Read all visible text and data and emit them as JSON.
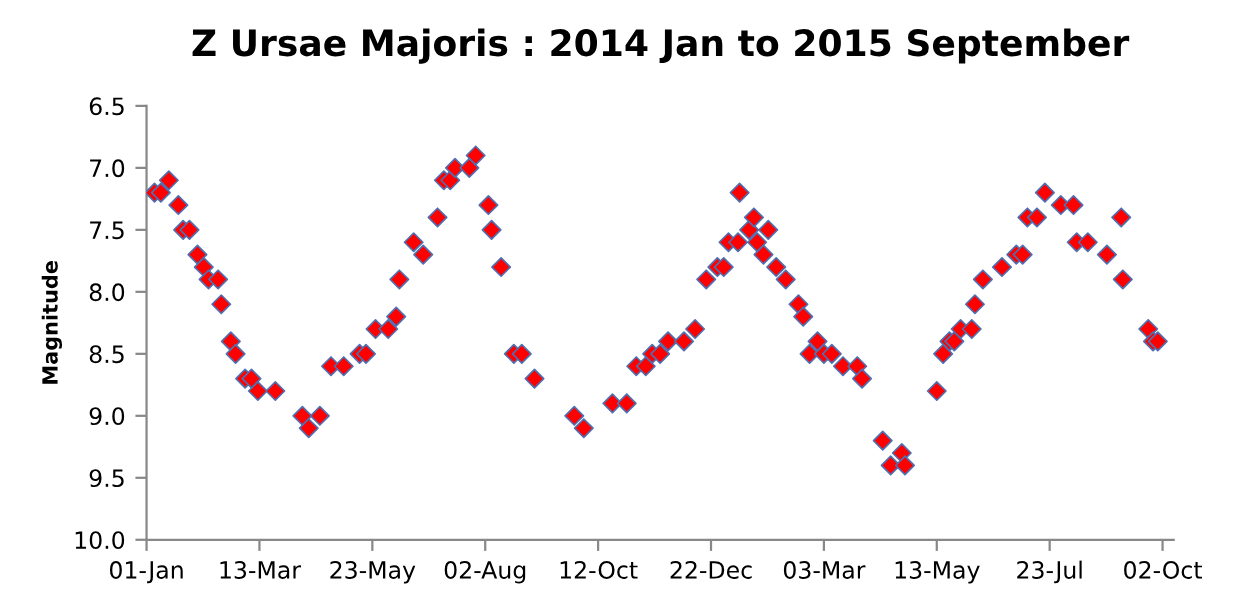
{
  "chart_data": {
    "type": "scatter",
    "title": "Z Ursae Majoris : 2014 Jan to 2015 September",
    "ylabel": "Magnitude",
    "x": [
      "2014-01-06",
      "2014-01-10",
      "2014-01-15",
      "2014-01-21",
      "2014-01-24",
      "2014-01-28",
      "2014-02-02",
      "2014-02-06",
      "2014-02-09",
      "2014-02-15",
      "2014-02-17",
      "2014-02-23",
      "2014-02-26",
      "2014-03-04",
      "2014-03-08",
      "2014-03-12",
      "2014-03-23",
      "2014-04-09",
      "2014-04-13",
      "2014-04-20",
      "2014-04-27",
      "2014-05-05",
      "2014-05-15",
      "2014-05-19",
      "2014-05-25",
      "2014-06-02",
      "2014-06-07",
      "2014-06-09",
      "2014-06-18",
      "2014-06-24",
      "2014-07-03",
      "2014-07-07",
      "2014-07-11",
      "2014-07-14",
      "2014-07-23",
      "2014-07-27",
      "2014-08-04",
      "2014-08-06",
      "2014-08-12",
      "2014-08-20",
      "2014-08-25",
      "2014-09-02",
      "2014-09-27",
      "2014-10-03",
      "2014-10-21",
      "2014-10-30",
      "2014-11-05",
      "2014-11-11",
      "2014-11-15",
      "2014-11-20",
      "2014-11-25",
      "2014-12-05",
      "2014-12-12",
      "2014-12-19",
      "2014-12-26",
      "2014-12-30",
      "2015-01-02",
      "2015-01-08",
      "2015-01-09",
      "2015-01-15",
      "2015-01-18",
      "2015-01-20",
      "2015-01-24",
      "2015-01-27",
      "2015-02-01",
      "2015-02-07",
      "2015-02-15",
      "2015-02-18",
      "2015-02-22",
      "2015-02-27",
      "2015-03-03",
      "2015-03-08",
      "2015-03-15",
      "2015-03-24",
      "2015-03-27",
      "2015-04-09",
      "2015-04-14",
      "2015-04-21",
      "2015-04-23",
      "2015-05-13",
      "2015-05-17",
      "2015-05-21",
      "2015-05-24",
      "2015-05-28",
      "2015-06-04",
      "2015-06-06",
      "2015-06-11",
      "2015-06-23",
      "2015-07-02",
      "2015-07-06",
      "2015-07-09",
      "2015-07-15",
      "2015-07-20",
      "2015-07-30",
      "2015-08-07",
      "2015-08-09",
      "2015-08-16",
      "2015-08-28",
      "2015-09-06",
      "2015-09-07",
      "2015-09-23",
      "2015-09-26",
      "2015-09-29"
    ],
    "series": [
      {
        "color": "#ff0000",
        "values": [
          7.2,
          7.2,
          7.1,
          7.3,
          7.5,
          7.5,
          7.7,
          7.8,
          7.9,
          7.9,
          8.1,
          8.4,
          8.5,
          8.7,
          8.7,
          8.8,
          8.8,
          9.0,
          9.1,
          9.0,
          8.6,
          8.6,
          8.5,
          8.5,
          8.3,
          8.3,
          8.2,
          7.9,
          7.6,
          7.7,
          7.4,
          7.1,
          7.1,
          7.0,
          7.0,
          6.9,
          7.3,
          7.5,
          7.8,
          8.5,
          8.5,
          8.7,
          9.0,
          9.1,
          8.9,
          8.9,
          8.6,
          8.6,
          8.5,
          8.5,
          8.4,
          8.4,
          8.3,
          7.9,
          7.8,
          7.8,
          7.6,
          7.6,
          7.2,
          7.5,
          7.4,
          7.6,
          7.7,
          7.5,
          7.8,
          7.9,
          8.1,
          8.2,
          8.5,
          8.4,
          8.5,
          8.5,
          8.6,
          8.6,
          8.7,
          9.2,
          9.4,
          9.3,
          9.4,
          8.8,
          8.5,
          8.4,
          8.4,
          8.3,
          8.3,
          8.1,
          7.9,
          7.8,
          7.7,
          7.7,
          7.4,
          7.4,
          7.2,
          7.3,
          7.3,
          7.6,
          7.6,
          7.7,
          7.4,
          7.9,
          8.3,
          8.4,
          8.4
        ]
      }
    ],
    "marker": "diamond",
    "xlim": [
      "2014-01-01",
      "2015-10-09"
    ],
    "xticks": [
      {
        "value": "2014-01-01",
        "label": "01-Jan"
      },
      {
        "value": "2014-03-13",
        "label": "13-Mar"
      },
      {
        "value": "2014-05-23",
        "label": "23-May"
      },
      {
        "value": "2014-08-02",
        "label": "02-Aug"
      },
      {
        "value": "2014-10-12",
        "label": "12-Oct"
      },
      {
        "value": "2014-12-22",
        "label": "22-Dec"
      },
      {
        "value": "2015-03-03",
        "label": "03-Mar"
      },
      {
        "value": "2015-05-13",
        "label": "13-May"
      },
      {
        "value": "2015-07-23",
        "label": "23-Jul"
      },
      {
        "value": "2015-10-02",
        "label": "02-Oct"
      }
    ],
    "ylim": [
      10.0,
      6.5
    ],
    "yticks": [
      {
        "value": 6.5,
        "label": "6.5"
      },
      {
        "value": 7.0,
        "label": "7.0"
      },
      {
        "value": 7.5,
        "label": "7.5"
      },
      {
        "value": 8.0,
        "label": "8.0"
      },
      {
        "value": 8.5,
        "label": "8.5"
      },
      {
        "value": 9.0,
        "label": "9.0"
      },
      {
        "value": 9.5,
        "label": "9.5"
      },
      {
        "value": 10.0,
        "label": "10.0"
      }
    ],
    "grid": false,
    "legend": false
  }
}
